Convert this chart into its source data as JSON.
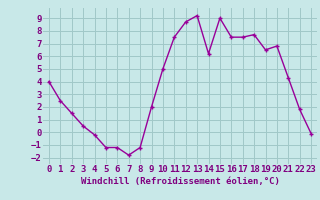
{
  "x": [
    0,
    1,
    2,
    3,
    4,
    5,
    6,
    7,
    8,
    9,
    10,
    11,
    12,
    13,
    14,
    15,
    16,
    17,
    18,
    19,
    20,
    21,
    22,
    23
  ],
  "y": [
    4.0,
    2.5,
    1.5,
    0.5,
    -0.2,
    -1.2,
    -1.2,
    -1.8,
    -1.2,
    2.0,
    5.0,
    7.5,
    8.7,
    9.2,
    6.2,
    9.0,
    7.5,
    7.5,
    7.7,
    6.5,
    6.8,
    4.3,
    1.8,
    -0.1
  ],
  "line_color": "#990099",
  "marker": "+",
  "marker_size": 3,
  "linewidth": 1.0,
  "xlabel": "Windchill (Refroidissement éolien,°C)",
  "xlim": [
    -0.5,
    23.5
  ],
  "ylim": [
    -2.5,
    9.8
  ],
  "yticks": [
    -2,
    -1,
    0,
    1,
    2,
    3,
    4,
    5,
    6,
    7,
    8,
    9
  ],
  "xticks": [
    0,
    1,
    2,
    3,
    4,
    5,
    6,
    7,
    8,
    9,
    10,
    11,
    12,
    13,
    14,
    15,
    16,
    17,
    18,
    19,
    20,
    21,
    22,
    23
  ],
  "bg_color": "#c8e8e8",
  "grid_color": "#a0c8c8",
  "line_purple": "#800080",
  "xlabel_fontsize": 6.5,
  "tick_fontsize": 6.5
}
